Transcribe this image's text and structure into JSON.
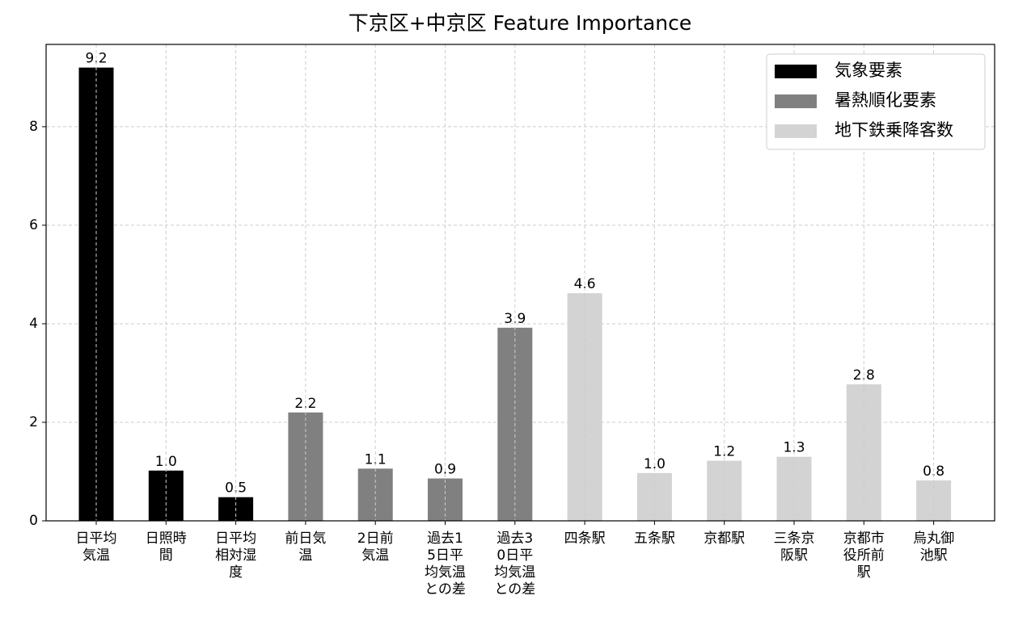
{
  "chart_data": {
    "type": "bar",
    "title": "下京区+中京区 Feature Importance",
    "categories": [
      "日平均気温",
      "日照時間",
      "日平均相対湿度",
      "前日気温",
      "2日前気温",
      "過去15日平均気温との差",
      "過去30日平均気温との差",
      "四条駅",
      "五条駅",
      "京都駅",
      "三条京阪駅",
      "京都市役所前駅",
      "烏丸御池駅"
    ],
    "series": [
      {
        "name": "気象要素",
        "color": "#000000",
        "values": [
          9.2,
          1.02,
          0.48,
          null,
          null,
          null,
          null,
          null,
          null,
          null,
          null,
          null,
          null
        ],
        "value_labels": [
          "9.2",
          "1.0",
          "0.5",
          null,
          null,
          null,
          null,
          null,
          null,
          null,
          null,
          null,
          null
        ]
      },
      {
        "name": "暑熱順化要素",
        "color": "#808080",
        "values": [
          null,
          null,
          null,
          2.2,
          1.06,
          0.86,
          3.92,
          null,
          null,
          null,
          null,
          null,
          null
        ],
        "value_labels": [
          null,
          null,
          null,
          "2.2",
          "1.1",
          "0.9",
          "3.9",
          null,
          null,
          null,
          null,
          null,
          null
        ]
      },
      {
        "name": "地下鉄乗降客数",
        "color": "#d3d3d3",
        "values": [
          null,
          null,
          null,
          null,
          null,
          null,
          null,
          4.62,
          0.97,
          1.22,
          1.3,
          2.77,
          0.82
        ],
        "value_labels": [
          null,
          null,
          null,
          null,
          null,
          null,
          null,
          "4.6",
          "1.0",
          "1.2",
          "1.3",
          "2.8",
          "0.8"
        ]
      }
    ],
    "ylim": [
      0,
      9.67
    ],
    "yticks": [
      0,
      2,
      4,
      6,
      8
    ],
    "grid": true,
    "legend": "upper right"
  }
}
